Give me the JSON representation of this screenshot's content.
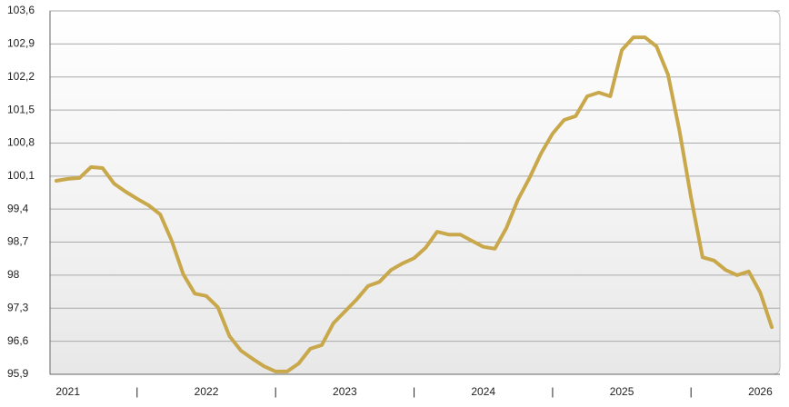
{
  "chart_data": {
    "type": "line",
    "x": [
      0,
      1,
      2,
      3,
      4,
      5,
      6,
      7,
      8,
      9,
      10,
      11,
      12,
      13,
      14,
      15,
      16,
      17,
      18,
      19,
      20,
      21,
      22,
      23,
      24,
      25,
      26,
      27,
      28,
      29,
      30,
      31,
      32,
      33,
      34,
      35,
      36,
      37,
      38,
      39,
      40,
      41,
      42,
      43,
      44,
      45,
      46,
      47,
      48,
      49,
      50,
      51,
      52,
      53,
      54,
      55,
      56,
      57,
      58,
      59,
      60,
      61,
      62
    ],
    "series": [
      {
        "name": null,
        "color": "#c8a84b",
        "values": [
          100.0,
          100.04,
          100.06,
          100.29,
          100.27,
          99.94,
          99.77,
          99.62,
          99.48,
          99.29,
          98.73,
          98.02,
          97.61,
          97.56,
          97.32,
          96.71,
          96.4,
          96.23,
          96.07,
          95.96,
          95.96,
          96.13,
          96.44,
          96.52,
          96.98,
          97.23,
          97.48,
          97.77,
          97.86,
          98.11,
          98.25,
          98.36,
          98.58,
          98.92,
          98.86,
          98.86,
          98.73,
          98.6,
          98.56,
          99.0,
          99.6,
          100.06,
          100.58,
          101.0,
          101.29,
          101.37,
          101.79,
          101.87,
          101.79,
          102.77,
          103.04,
          103.04,
          102.85,
          102.25,
          101.06,
          99.65,
          98.38,
          98.31,
          98.11,
          98.0,
          98.08,
          97.63,
          96.9
        ]
      }
    ],
    "xlim": [
      -0.55,
      62.7
    ],
    "xticks": [
      {
        "value": 1,
        "label": "2021"
      },
      {
        "value": 7,
        "label": "|"
      },
      {
        "value": 13,
        "label": "2022"
      },
      {
        "value": 19,
        "label": "|"
      },
      {
        "value": 25,
        "label": "2023"
      },
      {
        "value": 31,
        "label": "|"
      },
      {
        "value": 37,
        "label": "2024"
      },
      {
        "value": 43,
        "label": "|"
      },
      {
        "value": 49,
        "label": "2025"
      },
      {
        "value": 55,
        "label": "|"
      },
      {
        "value": 61,
        "label": "2026"
      }
    ],
    "ylim": [
      95.9,
      103.6
    ],
    "yticks": [
      {
        "value": 95.9,
        "label": "95,9"
      },
      {
        "value": 96.6,
        "label": "96,6"
      },
      {
        "value": 97.3,
        "label": "97,3"
      },
      98,
      {
        "value": 98.7,
        "label": "98,7"
      },
      {
        "value": 99.4,
        "label": "99,4"
      },
      {
        "value": 100.1,
        "label": "100,1"
      },
      {
        "value": 100.8,
        "label": "100,8"
      },
      {
        "value": 101.5,
        "label": "101,5"
      },
      {
        "value": 102.2,
        "label": "102,2"
      },
      {
        "value": 102.9,
        "label": "102,9"
      },
      {
        "value": 103.6,
        "label": "103,6"
      }
    ],
    "grid": true
  }
}
